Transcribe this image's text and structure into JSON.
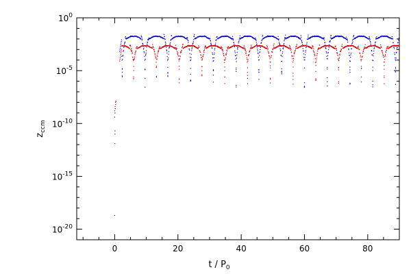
{
  "chart_data": {
    "type": "scatter",
    "xlabel": "t / P",
    "xlabel_sub": "0",
    "ylabel": "z",
    "ylabel_sub": "ccm",
    "xlim": [
      -12,
      90
    ],
    "ylog": true,
    "ylim_exponents": [
      -21,
      0
    ],
    "x_ticks": [
      {
        "value": 0,
        "label": "0"
      },
      {
        "value": 20,
        "label": "20"
      },
      {
        "value": 40,
        "label": "40"
      },
      {
        "value": 60,
        "label": "60"
      },
      {
        "value": 80,
        "label": "80"
      }
    ],
    "y_ticks": [
      {
        "exp": 0,
        "base": "10",
        "sup": "0"
      },
      {
        "exp": -5,
        "base": "10",
        "sup": "-5"
      },
      {
        "exp": -10,
        "base": "10",
        "sup": "-10"
      },
      {
        "exp": -15,
        "base": "10",
        "sup": "-15"
      },
      {
        "exp": -20,
        "base": "10",
        "sup": "-20"
      }
    ],
    "series": [
      {
        "color": "#0000cc",
        "description_points": "log10 of z at sampled t; blue dots",
        "early": [
          [
            0,
            -9.4
          ],
          [
            0.1,
            -9.0
          ],
          [
            0.2,
            -8.6
          ],
          [
            0.3,
            -8.2
          ],
          [
            0.4,
            -7.9
          ],
          [
            0.0,
            -18.7
          ],
          [
            0.1,
            -10.7
          ]
        ],
        "dips": [
          2.4,
          9.6,
          16.8,
          24.0,
          31.2,
          38.4,
          45.6,
          52.8,
          60.0,
          67.2,
          74.4,
          81.6,
          88.8
        ],
        "plateau_log": -1.7,
        "dip_log": -4.8
      },
      {
        "color": "#cc0000",
        "description_points": "log10 of z at sampled t; red dots",
        "early": [
          [
            0,
            -8.8
          ],
          [
            0.15,
            -8.4
          ],
          [
            0.25,
            -8.0
          ],
          [
            0.35,
            -7.9
          ],
          [
            0.05,
            -11.9
          ],
          [
            0.1,
            -11.0
          ]
        ],
        "dips": [
          6.0,
          13.2,
          20.4,
          27.6,
          34.8,
          42.0,
          49.2,
          56.4,
          63.6,
          70.8,
          78.0,
          85.2
        ],
        "plateau_log": -2.6,
        "dip_log": -4.6
      }
    ]
  }
}
